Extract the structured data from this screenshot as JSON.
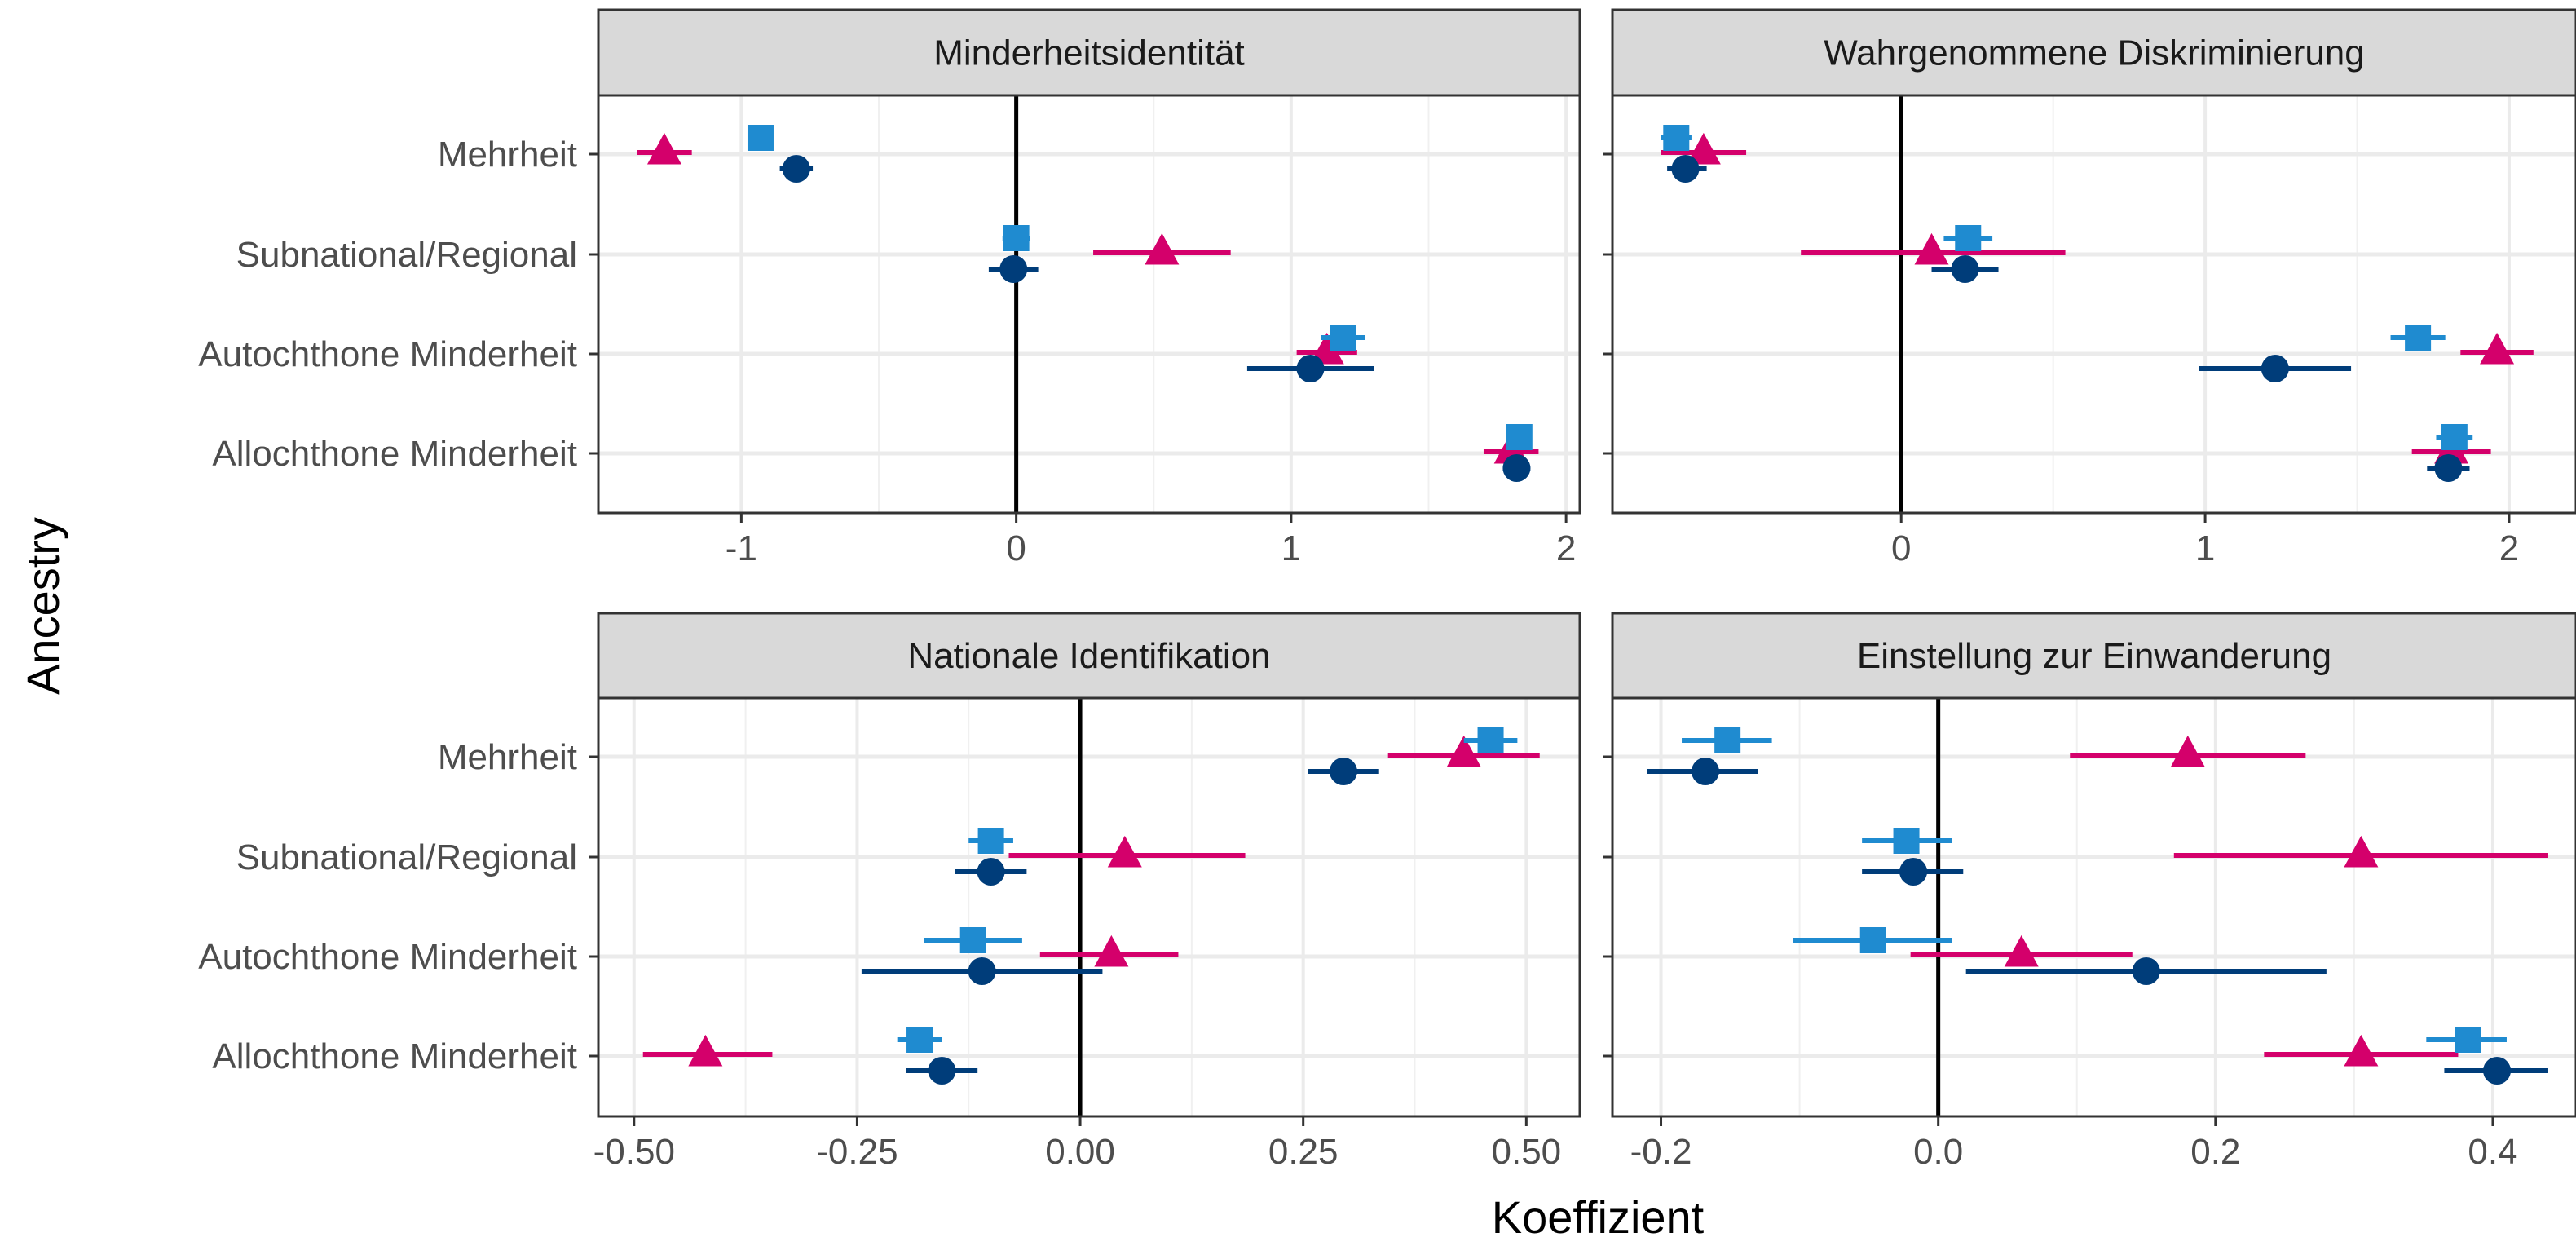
{
  "chart_data": {
    "type": "scatter",
    "xlabel": "Koeffizient",
    "ylabel": "Ancestry",
    "categories": [
      "Mehrheit",
      "Subnational/Regional",
      "Autochthone Minderheit",
      "Allochthone Minderheit"
    ],
    "colors": {
      "triangle": "#d4006b",
      "square": "#1f8bd0",
      "circle": "#003d7a"
    },
    "panels": [
      {
        "title": "Minderheitsidentität",
        "xlim": [
          -1.52,
          2.05
        ],
        "ticks": [
          -1,
          0,
          1,
          2
        ],
        "tick_labels": [
          "-1",
          "0",
          "1",
          "2"
        ],
        "series": [
          {
            "shape": "triangle",
            "points": [
              [
                -1.28,
                -1.38,
                -1.18
              ],
              [
                0.53,
                0.28,
                0.78
              ],
              [
                1.13,
                1.02,
                1.24
              ],
              [
                1.8,
                1.7,
                1.9
              ]
            ]
          },
          {
            "shape": "square",
            "points": [
              [
                -0.93,
                -0.97,
                -0.89
              ],
              [
                0.0,
                -0.05,
                0.05
              ],
              [
                1.19,
                1.11,
                1.27
              ],
              [
                1.83,
                1.79,
                1.87
              ]
            ]
          },
          {
            "shape": "circle",
            "points": [
              [
                -0.8,
                -0.86,
                -0.74
              ],
              [
                -0.01,
                -0.1,
                0.08
              ],
              [
                1.07,
                0.84,
                1.3
              ],
              [
                1.82,
                1.77,
                1.87
              ]
            ]
          }
        ]
      },
      {
        "title": "Wahrgenommene Diskriminierung",
        "xlim": [
          -0.95,
          2.22
        ],
        "ticks": [
          0,
          1,
          2
        ],
        "tick_labels": [
          "0",
          "1",
          "2"
        ],
        "series": [
          {
            "shape": "triangle",
            "points": [
              [
                -0.65,
                -0.79,
                -0.51
              ],
              [
                0.1,
                -0.33,
                0.54
              ],
              [
                1.96,
                1.84,
                2.08
              ],
              [
                1.81,
                1.68,
                1.94
              ]
            ]
          },
          {
            "shape": "square",
            "points": [
              [
                -0.74,
                -0.79,
                -0.69
              ],
              [
                0.22,
                0.14,
                0.3
              ],
              [
                1.7,
                1.61,
                1.79
              ],
              [
                1.82,
                1.76,
                1.88
              ]
            ]
          },
          {
            "shape": "circle",
            "points": [
              [
                -0.71,
                -0.77,
                -0.64
              ],
              [
                0.21,
                0.1,
                0.32
              ],
              [
                1.23,
                0.98,
                1.48
              ],
              [
                1.8,
                1.73,
                1.87
              ]
            ]
          }
        ]
      },
      {
        "title": "Nationale Identifikation",
        "xlim": [
          -0.54,
          0.56
        ],
        "ticks": [
          -0.5,
          -0.25,
          0.0,
          0.25,
          0.5
        ],
        "tick_labels": [
          "-0.50",
          "-0.25",
          "0.00",
          "0.25",
          "0.50"
        ],
        "series": [
          {
            "shape": "triangle",
            "points": [
              [
                0.43,
                0.345,
                0.515
              ],
              [
                0.05,
                -0.08,
                0.185
              ],
              [
                0.035,
                -0.045,
                0.11
              ],
              [
                -0.42,
                -0.49,
                -0.345
              ]
            ]
          },
          {
            "shape": "square",
            "points": [
              [
                0.46,
                0.43,
                0.49
              ],
              [
                -0.1,
                -0.125,
                -0.075
              ],
              [
                -0.12,
                -0.175,
                -0.065
              ],
              [
                -0.18,
                -0.205,
                -0.155
              ]
            ]
          },
          {
            "shape": "circle",
            "points": [
              [
                0.295,
                0.255,
                0.335
              ],
              [
                -0.1,
                -0.14,
                -0.06
              ],
              [
                -0.11,
                -0.245,
                0.025
              ],
              [
                -0.155,
                -0.195,
                -0.115
              ]
            ]
          }
        ]
      },
      {
        "title": "Einstellung zur Einwanderung",
        "xlim": [
          -0.235,
          0.46
        ],
        "ticks": [
          -0.2,
          0.0,
          0.2,
          0.4
        ],
        "tick_labels": [
          "-0.2",
          "0.0",
          "0.2",
          "0.4"
        ],
        "series": [
          {
            "shape": "triangle",
            "points": [
              [
                0.18,
                0.095,
                0.265
              ],
              [
                0.305,
                0.17,
                0.44
              ],
              [
                0.06,
                -0.02,
                0.14
              ],
              [
                0.305,
                0.235,
                0.375
              ]
            ]
          },
          {
            "shape": "square",
            "points": [
              [
                -0.152,
                -0.185,
                -0.12
              ],
              [
                -0.023,
                -0.055,
                0.01
              ],
              [
                -0.047,
                -0.105,
                0.01
              ],
              [
                0.382,
                0.352,
                0.41
              ]
            ]
          },
          {
            "shape": "circle",
            "points": [
              [
                -0.168,
                -0.21,
                -0.13
              ],
              [
                -0.018,
                -0.055,
                0.018
              ],
              [
                0.15,
                0.02,
                0.28
              ],
              [
                0.403,
                0.365,
                0.44
              ]
            ]
          }
        ]
      }
    ]
  }
}
